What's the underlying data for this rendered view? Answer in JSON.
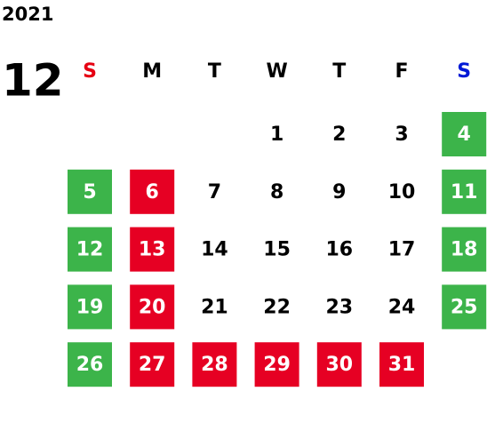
{
  "year": "2021",
  "month": "12",
  "weekdays": [
    {
      "label": "S",
      "color": "#e60012"
    },
    {
      "label": "M"
    },
    {
      "label": "T"
    },
    {
      "label": "W"
    },
    {
      "label": "T"
    },
    {
      "label": "F"
    },
    {
      "label": "S",
      "color": "#0019d6"
    }
  ],
  "weeks": [
    [
      null,
      null,
      null,
      {
        "day": 1
      },
      {
        "day": 2
      },
      {
        "day": 3
      },
      {
        "day": 4,
        "color": "#3cb44a"
      }
    ],
    [
      {
        "day": 5,
        "color": "#3cb44a"
      },
      {
        "day": 6,
        "color": "#e60023"
      },
      {
        "day": 7
      },
      {
        "day": 8
      },
      {
        "day": 9
      },
      {
        "day": 10
      },
      {
        "day": 11,
        "color": "#3cb44a"
      }
    ],
    [
      {
        "day": 12,
        "color": "#3cb44a"
      },
      {
        "day": 13,
        "color": "#e60023"
      },
      {
        "day": 14
      },
      {
        "day": 15
      },
      {
        "day": 16
      },
      {
        "day": 17
      },
      {
        "day": 18,
        "color": "#3cb44a"
      }
    ],
    [
      {
        "day": 19,
        "color": "#3cb44a"
      },
      {
        "day": 20,
        "color": "#e60023"
      },
      {
        "day": 21
      },
      {
        "day": 22
      },
      {
        "day": 23
      },
      {
        "day": 24
      },
      {
        "day": 25,
        "color": "#3cb44a"
      }
    ],
    [
      {
        "day": 26,
        "color": "#3cb44a"
      },
      {
        "day": 27,
        "color": "#e60023"
      },
      {
        "day": 28,
        "color": "#e60023"
      },
      {
        "day": 29,
        "color": "#e60023"
      },
      {
        "day": 30,
        "color": "#e60023"
      },
      {
        "day": 31,
        "color": "#e60023"
      },
      null
    ]
  ]
}
